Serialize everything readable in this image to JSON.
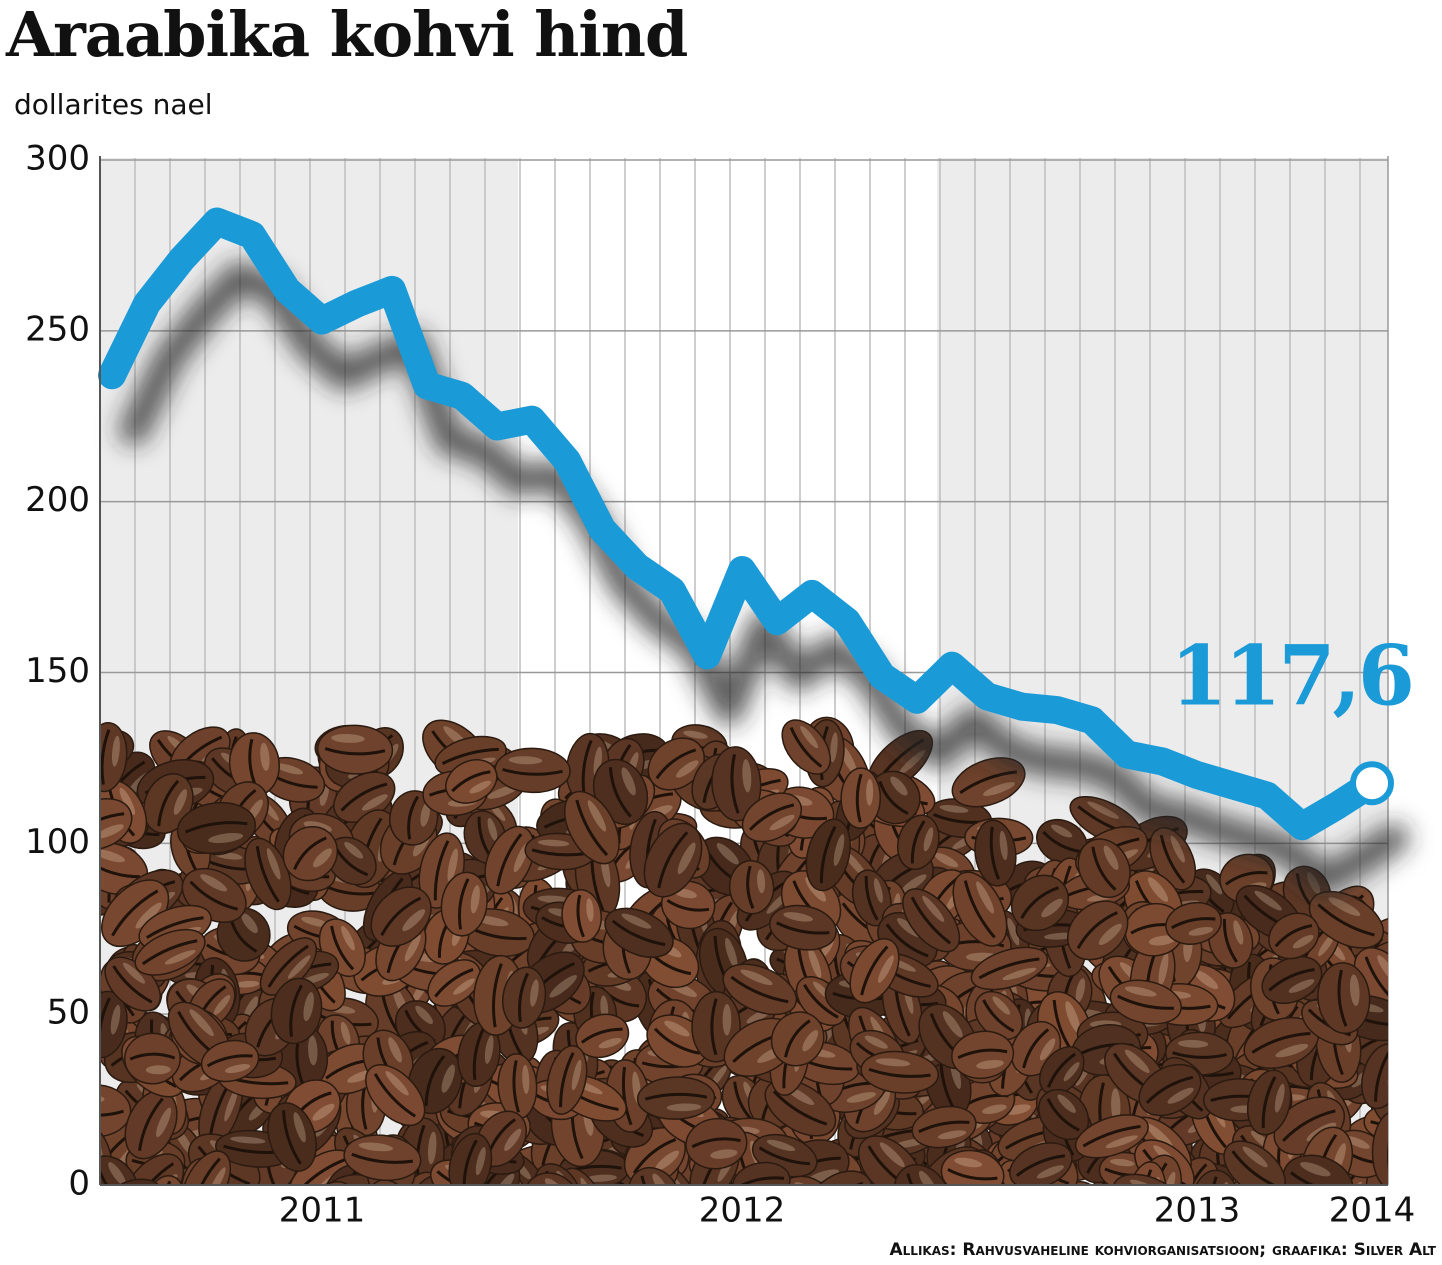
{
  "chart_data": {
    "type": "line",
    "title": "Araabika kohvi hind",
    "subtitle": "dollarites nael",
    "categories": [
      null,
      null,
      null,
      null,
      null,
      null,
      "2011",
      null,
      null,
      null,
      null,
      null,
      null,
      null,
      null,
      null,
      null,
      null,
      "2012",
      null,
      null,
      null,
      null,
      null,
      null,
      null,
      null,
      null,
      null,
      null,
      null,
      "2013",
      null,
      null,
      null,
      null,
      "2014"
    ],
    "series": [
      {
        "name": "Araabika",
        "color": "#1b9ad8",
        "values": [
          237,
          258,
          271,
          282,
          278,
          262,
          253,
          258,
          262,
          234,
          231,
          222,
          224,
          212,
          192,
          181,
          174,
          155,
          180,
          165,
          173,
          165,
          149,
          142,
          152,
          143,
          140,
          139,
          136,
          126,
          124,
          120,
          117,
          114,
          105,
          111,
          117.6
        ]
      }
    ],
    "last_value_label": "117,6",
    "ylim": [
      0,
      300
    ],
    "yticks": [
      0,
      50,
      100,
      150,
      200,
      250,
      300
    ],
    "grid": true,
    "source": "Allikas: Rahvusvaheline kohviorganisatsioon; graafika: Silver Alt"
  }
}
